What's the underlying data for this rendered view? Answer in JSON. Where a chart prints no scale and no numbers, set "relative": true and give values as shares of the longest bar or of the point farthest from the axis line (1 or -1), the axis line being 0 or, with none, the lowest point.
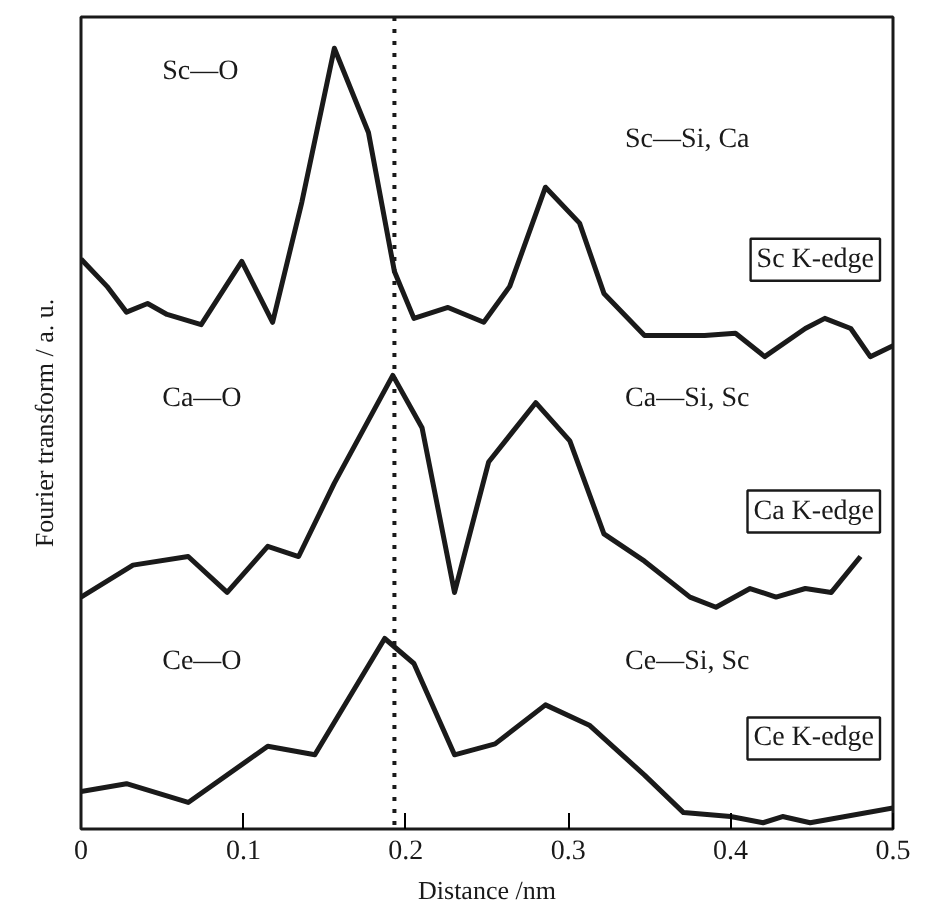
{
  "chart_data": {
    "type": "line",
    "relative": true,
    "xlabel": "Distance /nm",
    "ylabel": "Fourier transform / a. u.",
    "xlim": [
      0,
      0.5
    ],
    "xticks": [
      0,
      0.1,
      0.2,
      0.3,
      0.4,
      0.5
    ],
    "grid": false,
    "marker": "none",
    "line_style": "solid",
    "series": [
      {
        "name": "Sc K-edge",
        "color": "#1a1a1a",
        "x": [
          0,
          0.016,
          0.028,
          0.041,
          0.053,
          0.074,
          0.099,
          0.118,
          0.136,
          0.156,
          0.177,
          0.193,
          0.205,
          0.226,
          0.248,
          0.264,
          0.286,
          0.307,
          0.322,
          0.347,
          0.384,
          0.403,
          0.421,
          0.446,
          0.458,
          0.474,
          0.486,
          0.5
        ],
        "values": [
          0.73,
          0.695,
          0.662,
          0.673,
          0.659,
          0.646,
          0.727,
          0.649,
          0.803,
          1.0,
          0.892,
          0.714,
          0.654,
          0.668,
          0.649,
          0.695,
          0.822,
          0.776,
          0.686,
          0.632,
          0.632,
          0.635,
          0.605,
          0.641,
          0.654,
          0.641,
          0.605,
          0.619
        ]
      },
      {
        "name": "Ca K-edge",
        "color": "#1a1a1a",
        "x": [
          0,
          0.032,
          0.066,
          0.09,
          0.115,
          0.134,
          0.156,
          0.192,
          0.21,
          0.23,
          0.251,
          0.28,
          0.301,
          0.322,
          0.347,
          0.375,
          0.391,
          0.412,
          0.428,
          0.446,
          0.462,
          0.48
        ],
        "values": [
          0.297,
          0.338,
          0.349,
          0.303,
          0.362,
          0.349,
          0.443,
          0.581,
          0.514,
          0.303,
          0.47,
          0.546,
          0.497,
          0.378,
          0.343,
          0.297,
          0.284,
          0.308,
          0.297,
          0.308,
          0.303,
          0.349
        ]
      },
      {
        "name": "Ce K-edge",
        "color": "#1a1a1a",
        "x": [
          0,
          0.028,
          0.066,
          0.115,
          0.144,
          0.187,
          0.205,
          0.23,
          0.255,
          0.286,
          0.313,
          0.347,
          0.371,
          0.4,
          0.42,
          0.432,
          0.449,
          0.5
        ],
        "values": [
          0.048,
          0.058,
          0.034,
          0.106,
          0.095,
          0.244,
          0.212,
          0.095,
          0.109,
          0.159,
          0.133,
          0.069,
          0.021,
          0.016,
          0.008,
          0.016,
          0.008,
          0.027
        ]
      }
    ],
    "ref_lines": [
      {
        "axis": "x",
        "value": 0.193,
        "color": "#1a1a1a",
        "line_style": "dotted"
      }
    ],
    "annotations": [
      "Sc—O",
      "Sc—Si, Ca",
      "Ca—O",
      "Ca—Si, Sc",
      "Ce—O",
      "Ce—Si, Sc"
    ]
  }
}
